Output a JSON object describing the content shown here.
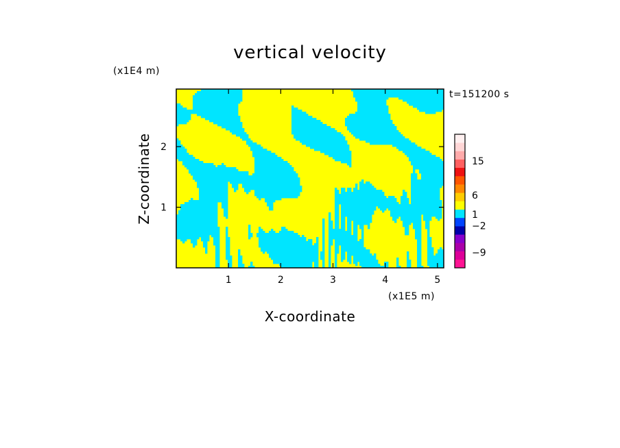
{
  "chart_data": {
    "type": "heatmap",
    "title": "vertical velocity",
    "xlabel": "X-coordinate",
    "ylabel": "Z-coordinate",
    "x_unit": "(x1E5 m)",
    "y_unit": "(x1E4 m)",
    "time_label": "t=151200 s",
    "xlim": [
      0,
      5.12
    ],
    "ylim": [
      0,
      2.95
    ],
    "x_ticks": [
      1,
      2,
      3,
      4,
      5
    ],
    "y_ticks": [
      1,
      2
    ],
    "grid": false,
    "colorbar": {
      "labels": [
        {
          "value": 15,
          "text": "15"
        },
        {
          "value": 6,
          "text": "6"
        },
        {
          "value": 1,
          "text": "1"
        },
        {
          "value": -2,
          "text": "−2"
        },
        {
          "value": -9,
          "text": "−9"
        }
      ],
      "levels": [
        {
          "color": "#ff1493"
        },
        {
          "color": "#dd0099"
        },
        {
          "color": "#aa00aa"
        },
        {
          "color": "#8800cc"
        },
        {
          "color": "#0000aa"
        },
        {
          "color": "#0044ff"
        },
        {
          "color": "#00e5ff"
        },
        {
          "color": "#ffff00"
        },
        {
          "color": "#ffcc00"
        },
        {
          "color": "#ff8800"
        },
        {
          "color": "#ff5500"
        },
        {
          "color": "#ee1111"
        },
        {
          "color": "#ff6060"
        },
        {
          "color": "#ffaaaa"
        },
        {
          "color": "#ffd6d6"
        },
        {
          "color": "#fff0f0"
        }
      ]
    },
    "dominant_colors": {
      "positive": "#ffff00",
      "negative": "#00e5ff"
    }
  }
}
